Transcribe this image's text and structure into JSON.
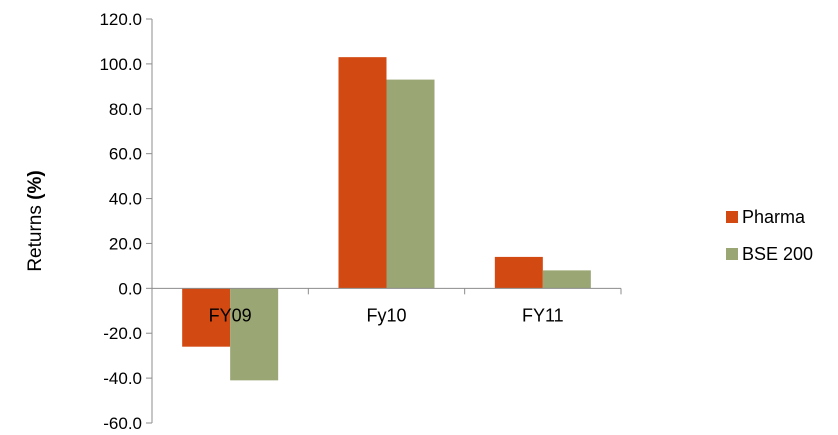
{
  "chart_data": {
    "type": "bar",
    "title": "",
    "xlabel": "",
    "ylabel": "Returns (%)",
    "ylim": [
      -60,
      120
    ],
    "yticks": [
      120,
      100,
      80,
      60,
      40,
      20,
      0,
      -20,
      -40,
      -60
    ],
    "tick_format_decimals": 1,
    "categories": [
      "FY09",
      "Fy10",
      "FY11"
    ],
    "series": [
      {
        "name": "Pharma",
        "color": "#d24a12",
        "values": [
          -26,
          103,
          14
        ]
      },
      {
        "name": "BSE 200",
        "color": "#9aa674",
        "values": [
          -41,
          93,
          8
        ]
      }
    ],
    "grid": false,
    "legend_position": "right"
  }
}
